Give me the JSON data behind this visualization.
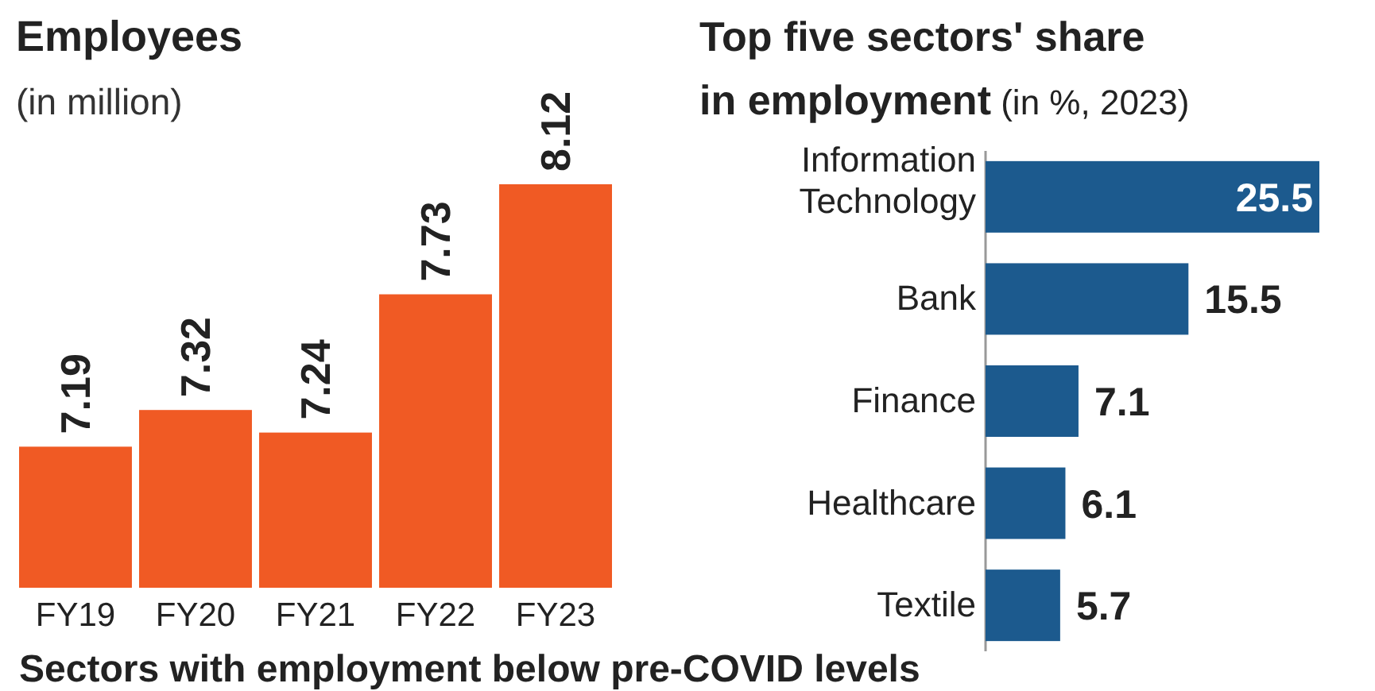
{
  "chart_data": [
    {
      "type": "bar",
      "title": "Employees",
      "subtitle": "(in million)",
      "categories": [
        "FY19",
        "FY20",
        "FY21",
        "FY22",
        "FY23"
      ],
      "values": [
        7.19,
        7.32,
        7.24,
        7.73,
        8.12
      ],
      "color": "#f05a24",
      "ylim": [
        6.69,
        8.12
      ],
      "data_labels": true,
      "annotations": [
        "Sectors with employment below pre-COVID levels"
      ]
    },
    {
      "type": "bar",
      "orientation": "horizontal",
      "title": "Top five sectors' share in employment",
      "subtitle": "(in %, 2023)",
      "categories": [
        "Information Technology",
        "Bank",
        "Finance",
        "Healthcare",
        "Textile"
      ],
      "values": [
        25.5,
        15.5,
        7.1,
        6.1,
        5.7
      ],
      "color": "#1c5a8e",
      "xlim": [
        0,
        25.5
      ],
      "data_labels": true
    }
  ]
}
